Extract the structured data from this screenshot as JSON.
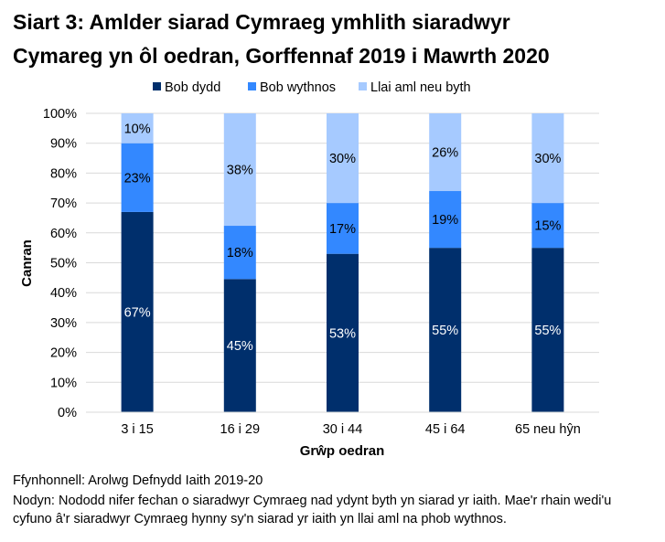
{
  "chart_data": {
    "type": "bar",
    "stacked": true,
    "title_lines": [
      "Siart 3: Amlder siarad Cymraeg ymhlith siaradwyr",
      "Cymareg yn ôl oedran, Gorffennaf 2019 i Mawrth 2020"
    ],
    "xlabel": "Grŵp oedran",
    "ylabel": "Canran",
    "ylim": [
      0,
      100
    ],
    "yticks": [
      "0%",
      "10%",
      "20%",
      "30%",
      "40%",
      "50%",
      "60%",
      "70%",
      "80%",
      "90%",
      "100%"
    ],
    "categories": [
      "3 i 15",
      "16 i 29",
      "30 i 44",
      "45 i 64",
      "65 neu hŷn"
    ],
    "series": [
      {
        "name": "Bob dydd",
        "values": [
          67,
          45,
          53,
          55,
          55
        ],
        "color": "#002f6c"
      },
      {
        "name": "Bob wythnos",
        "values": [
          23,
          18,
          17,
          19,
          15
        ],
        "color": "#3388ff"
      },
      {
        "name": "Llai aml neu byth",
        "values": [
          10,
          38,
          30,
          26,
          30
        ],
        "color": "#a6caff"
      }
    ],
    "legend_position": "top",
    "grid": true
  },
  "notes": {
    "source": "Ffynhonnell: Arolwg Defnydd Iaith 2019-20",
    "note1": "Nodyn: Nododd nifer fechan o siaradwyr Cymraeg nad ydynt byth yn siarad yr iaith. Mae'r rhain wedi'u",
    "note2": "cyfuno â'r siaradwyr Cymraeg hynny sy'n siarad yr iaith yn llai aml na phob wythnos."
  }
}
